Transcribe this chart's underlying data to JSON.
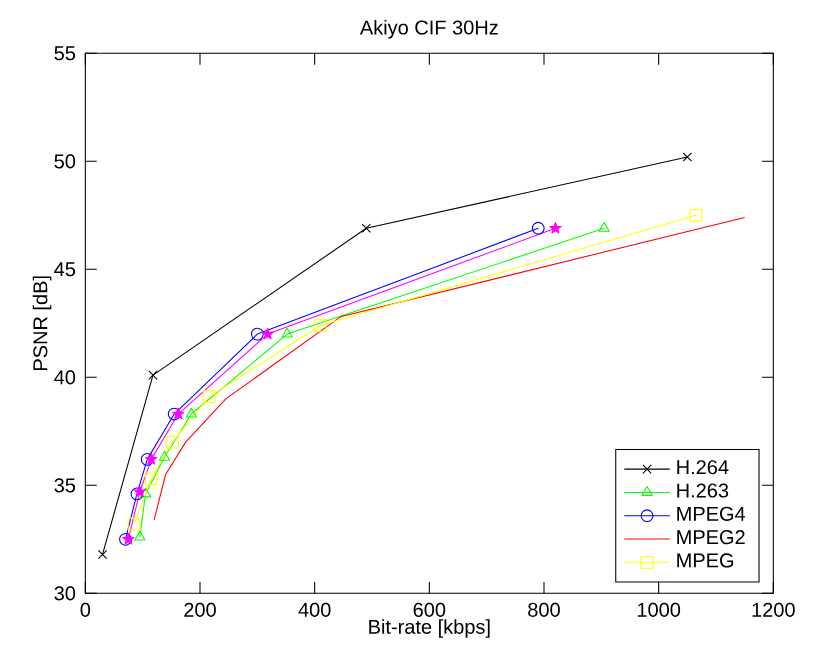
{
  "chart_data": {
    "type": "line",
    "title": "Akiyo CIF 30Hz",
    "xlabel": "Bit-rate [kbps]",
    "ylabel": "PSNR [dB]",
    "xlim": [
      0,
      1200
    ],
    "ylim": [
      30,
      55
    ],
    "xticks": [
      0,
      200,
      400,
      600,
      800,
      1000,
      1200
    ],
    "yticks": [
      30,
      35,
      40,
      45,
      50,
      55
    ],
    "legend": "bottom right",
    "series": [
      {
        "name": "H.264",
        "color": "#000000",
        "marker": "cross",
        "x": [
          30,
          118,
          490,
          1050
        ],
        "values": [
          31.8,
          40.1,
          46.9,
          50.2
        ]
      },
      {
        "name": "H.263",
        "color": "#00ff00",
        "marker": "triangle",
        "x": [
          95,
          105,
          138,
          185,
          352,
          905
        ],
        "values": [
          32.6,
          34.6,
          36.3,
          38.3,
          42.0,
          46.9
        ]
      },
      {
        "name": "MPEG4",
        "color": "#0000ff",
        "marker": "circle",
        "x": [
          70,
          90,
          108,
          155,
          300,
          790
        ],
        "values": [
          32.5,
          34.6,
          36.2,
          38.3,
          42.0,
          46.9
        ]
      },
      {
        "name": "MPEG2",
        "color": "#ff0000",
        "marker": "none",
        "x": [
          120,
          140,
          175,
          245,
          445,
          1150
        ],
        "values": [
          33.4,
          35.5,
          37.0,
          39.0,
          42.8,
          47.4
        ]
      },
      {
        "name": "MPEG",
        "color": "#ffff00",
        "marker": "square",
        "x": [
          85,
          115,
          152,
          216,
          410,
          1065
        ],
        "values": [
          33.2,
          35.3,
          37.0,
          39.1,
          42.4,
          47.5
        ]
      },
      {
        "color": "#ff00ff",
        "marker": "star",
        "x": [
          75,
          95,
          115,
          162,
          318,
          820
        ],
        "values": [
          32.5,
          34.7,
          36.2,
          38.3,
          42.0,
          46.9
        ]
      }
    ]
  }
}
